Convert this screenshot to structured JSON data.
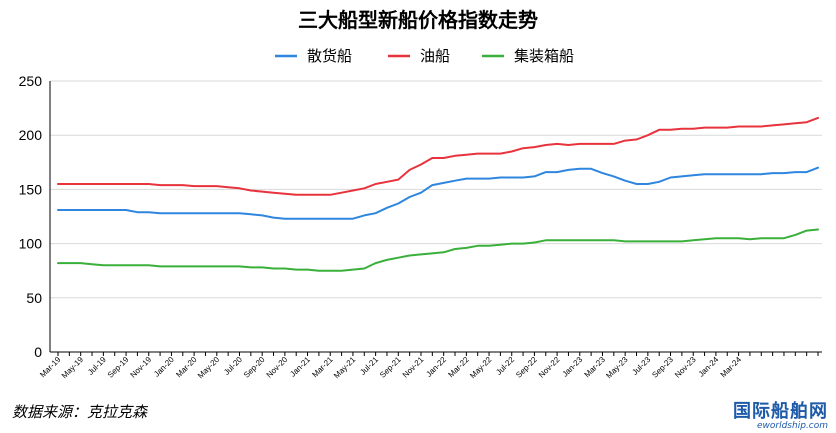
{
  "chart_data": {
    "type": "line",
    "title": "三大船型新船价格指数走势",
    "ylim": [
      0,
      250
    ],
    "yticks": [
      0,
      50,
      100,
      150,
      200,
      250
    ],
    "grid": "horizontal",
    "legend_position": "top",
    "x_tick_labels": [
      "Mar-19",
      "May-19",
      "Jul-19",
      "Sep-19",
      "Nov-19",
      "Jan-20",
      "Mar-20",
      "May-20",
      "Jul-20",
      "Sep-20",
      "Nov-20",
      "Jan-21",
      "Mar-21",
      "May-21",
      "Jul-21",
      "Sep-21",
      "Nov-21",
      "Jan-22",
      "Mar-22",
      "May-22",
      "Jul-22",
      "Sep-22",
      "Nov-22",
      "Jan-23",
      "Mar-23",
      "May-23",
      "Jul-23",
      "Sep-23",
      "Nov-23",
      "Jan-24",
      "Mar-24"
    ],
    "series": [
      {
        "name": "散货船",
        "color": "#2e86de",
        "values": [
          131,
          131,
          131,
          131,
          131,
          131,
          131,
          129,
          129,
          128,
          128,
          128,
          128,
          128,
          128,
          128,
          128,
          127,
          126,
          124,
          123,
          123,
          123,
          123,
          123,
          123,
          123,
          126,
          128,
          133,
          137,
          143,
          147,
          154,
          156,
          158,
          160,
          160,
          160,
          161,
          161,
          161,
          162,
          166,
          166,
          168,
          169,
          169,
          165,
          162,
          158,
          155,
          155,
          157,
          161,
          162,
          163,
          164,
          164,
          164,
          164,
          164,
          164,
          165,
          165,
          166,
          166,
          170
        ]
      },
      {
        "name": "油船",
        "color": "#e8333d",
        "values": [
          155,
          155,
          155,
          155,
          155,
          155,
          155,
          155,
          155,
          154,
          154,
          154,
          153,
          153,
          153,
          152,
          151,
          149,
          148,
          147,
          146,
          145,
          145,
          145,
          145,
          147,
          149,
          151,
          155,
          157,
          159,
          168,
          173,
          179,
          179,
          181,
          182,
          183,
          183,
          183,
          185,
          188,
          189,
          191,
          192,
          191,
          192,
          192,
          192,
          192,
          195,
          196,
          200,
          205,
          205,
          206,
          206,
          207,
          207,
          207,
          208,
          208,
          208,
          209,
          210,
          211,
          212,
          216
        ]
      },
      {
        "name": "集装箱船",
        "color": "#3ab03a",
        "values": [
          82,
          82,
          82,
          81,
          80,
          80,
          80,
          80,
          80,
          79,
          79,
          79,
          79,
          79,
          79,
          79,
          79,
          78,
          78,
          77,
          77,
          76,
          76,
          75,
          75,
          75,
          76,
          77,
          82,
          85,
          87,
          89,
          90,
          91,
          92,
          95,
          96,
          98,
          98,
          99,
          100,
          100,
          101,
          103,
          103,
          103,
          103,
          103,
          103,
          103,
          102,
          102,
          102,
          102,
          102,
          102,
          103,
          104,
          105,
          105,
          105,
          104,
          105,
          105,
          105,
          108,
          112,
          113
        ]
      }
    ]
  },
  "footer": {
    "source": "数据来源：克拉克森",
    "watermark": "国际船舶网",
    "watermark_url": "eworldship.com"
  }
}
